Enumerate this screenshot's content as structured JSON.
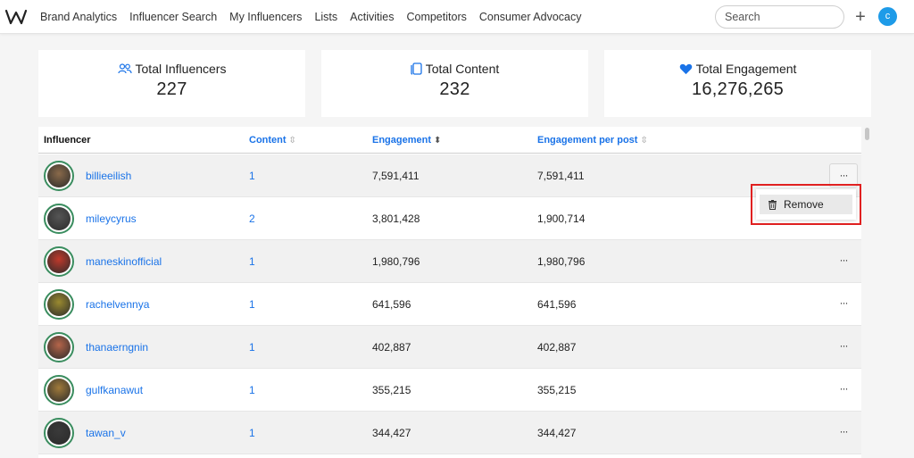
{
  "nav": {
    "links": [
      "Brand Analytics",
      "Influencer Search",
      "My Influencers",
      "Lists",
      "Activities",
      "Competitors",
      "Consumer Advocacy"
    ],
    "search_placeholder": "Search",
    "plus": "+",
    "avatar_initial": "c"
  },
  "stats": {
    "influencers_label": "Total Influencers",
    "influencers_value": "227",
    "content_label": "Total Content",
    "content_value": "232",
    "engagement_label": "Total Engagement",
    "engagement_value": "16,276,265"
  },
  "table": {
    "headers": {
      "influencer": "Influencer",
      "content": "Content",
      "engagement": "Engagement",
      "engagement_per_post": "Engagement per post"
    },
    "rows": [
      {
        "name": "billieeilish",
        "content": "1",
        "engagement": "7,591,411",
        "per_post": "7,591,411",
        "avatar_color": "#8a6a4a"
      },
      {
        "name": "mileycyrus",
        "content": "2",
        "engagement": "3,801,428",
        "per_post": "1,900,714",
        "avatar_color": "#555555"
      },
      {
        "name": "maneskinofficial",
        "content": "1",
        "engagement": "1,980,796",
        "per_post": "1,980,796",
        "avatar_color": "#c0392b"
      },
      {
        "name": "rachelvennya",
        "content": "1",
        "engagement": "641,596",
        "per_post": "641,596",
        "avatar_color": "#9a8a30"
      },
      {
        "name": "thanaerngnin",
        "content": "1",
        "engagement": "402,887",
        "per_post": "402,887",
        "avatar_color": "#b5654a"
      },
      {
        "name": "gulfkanawut",
        "content": "1",
        "engagement": "355,215",
        "per_post": "355,215",
        "avatar_color": "#a07a3a"
      },
      {
        "name": "tawan_v",
        "content": "1",
        "engagement": "344,427",
        "per_post": "344,427",
        "avatar_color": "#3a3a3a"
      }
    ],
    "more_label": "···"
  },
  "dropdown": {
    "remove_label": "Remove"
  },
  "colors": {
    "link": "#1a73e8",
    "avatar_border": "#3a8d5f",
    "highlight": "#e02020"
  }
}
